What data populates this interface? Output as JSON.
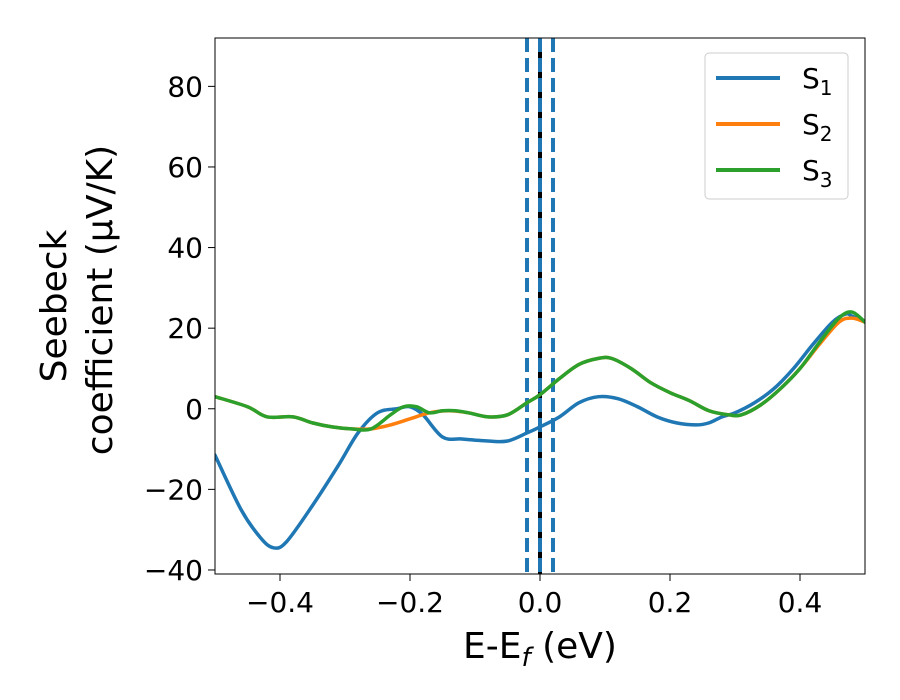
{
  "chart_data": {
    "type": "line",
    "xlabel": {
      "main": "E-E",
      "sub": "f",
      "unit": " (eV)"
    },
    "ylabel": {
      "line1": "Seebeck",
      "line2": "coefficient  (μV/K)"
    },
    "xlim": [
      -0.5,
      0.5
    ],
    "ylim": [
      -41,
      92
    ],
    "xticks": [
      -0.4,
      -0.2,
      0.0,
      0.2,
      0.4
    ],
    "xtick_labels": [
      "−0.4",
      "−0.2",
      "0.0",
      "0.2",
      "0.4"
    ],
    "yticks": [
      -40,
      -20,
      0,
      20,
      40,
      60,
      80
    ],
    "ytick_labels": [
      "−40",
      "−20",
      "0",
      "20",
      "40",
      "60",
      "80"
    ],
    "grid": false,
    "legend_position": "top-right",
    "vlines": [
      {
        "x": -0.02,
        "style": "dashed",
        "color": "#1f77b4"
      },
      {
        "x": 0.0,
        "style": "solid",
        "color": "#000000"
      },
      {
        "x": 0.0,
        "style": "dashed",
        "color": "#1f77b4"
      },
      {
        "x": 0.02,
        "style": "dashed",
        "color": "#1f77b4"
      }
    ],
    "series": [
      {
        "name": "S",
        "sub": "1",
        "color": "#1f77b4",
        "x": [
          -0.5,
          -0.46,
          -0.43,
          -0.41,
          -0.39,
          -0.35,
          -0.31,
          -0.28,
          -0.25,
          -0.22,
          -0.2,
          -0.18,
          -0.15,
          -0.12,
          -0.08,
          -0.05,
          -0.02,
          0.0,
          0.03,
          0.06,
          0.09,
          0.12,
          0.15,
          0.18,
          0.21,
          0.24,
          0.26,
          0.28,
          0.3,
          0.33,
          0.36,
          0.39,
          0.42,
          0.45,
          0.47,
          0.48,
          0.5
        ],
        "y": [
          -11.5,
          -25,
          -32,
          -34.5,
          -33,
          -24,
          -14,
          -6,
          -1,
          0,
          0.5,
          -1.5,
          -7,
          -7.5,
          -8,
          -8,
          -6,
          -4.5,
          -2,
          1.5,
          3,
          2.5,
          0.5,
          -2,
          -3.5,
          -4,
          -3.5,
          -2,
          -1,
          1.5,
          5,
          10,
          16,
          21.5,
          23.5,
          23,
          21.5
        ]
      },
      {
        "name": "S",
        "sub": "2",
        "color": "#ff7f0e",
        "x": [
          -0.5,
          -0.45,
          -0.42,
          -0.38,
          -0.35,
          -0.32,
          -0.29,
          -0.26,
          -0.23,
          -0.2,
          -0.17,
          -0.14,
          -0.11,
          -0.08,
          -0.05,
          -0.02,
          0.0,
          0.03,
          0.06,
          0.09,
          0.11,
          0.14,
          0.17,
          0.2,
          0.23,
          0.26,
          0.29,
          0.31,
          0.34,
          0.37,
          0.4,
          0.43,
          0.46,
          0.48,
          0.5
        ],
        "y": [
          3,
          0.5,
          -2,
          -2,
          -3.5,
          -4.5,
          -5,
          -5,
          -4,
          -2.5,
          -1,
          -0.5,
          -1,
          -2,
          -1.5,
          1.5,
          3.5,
          7.5,
          11,
          12.5,
          12.5,
          10,
          6.5,
          4,
          2,
          -0.5,
          -1.5,
          -1.5,
          1,
          5,
          10,
          16,
          21.5,
          22.5,
          21.5
        ]
      },
      {
        "name": "S",
        "sub": "3",
        "color": "#2ca02c",
        "x": [
          -0.5,
          -0.45,
          -0.42,
          -0.38,
          -0.35,
          -0.32,
          -0.29,
          -0.26,
          -0.23,
          -0.21,
          -0.19,
          -0.17,
          -0.15,
          -0.13,
          -0.11,
          -0.08,
          -0.05,
          -0.02,
          0.0,
          0.03,
          0.06,
          0.09,
          0.11,
          0.14,
          0.17,
          0.2,
          0.23,
          0.26,
          0.29,
          0.31,
          0.34,
          0.37,
          0.4,
          0.43,
          0.46,
          0.48,
          0.5
        ],
        "y": [
          3,
          0.5,
          -2,
          -2,
          -3.5,
          -4.5,
          -5,
          -5,
          -1.5,
          0.5,
          0.5,
          -1,
          -0.5,
          -0.5,
          -1,
          -2,
          -1.5,
          1.5,
          3.5,
          7.5,
          11,
          12.5,
          12.5,
          10,
          6.5,
          4,
          2,
          -0.5,
          -1.5,
          -1.5,
          1,
          5,
          10,
          16.5,
          22.5,
          24,
          21.5
        ]
      }
    ]
  }
}
